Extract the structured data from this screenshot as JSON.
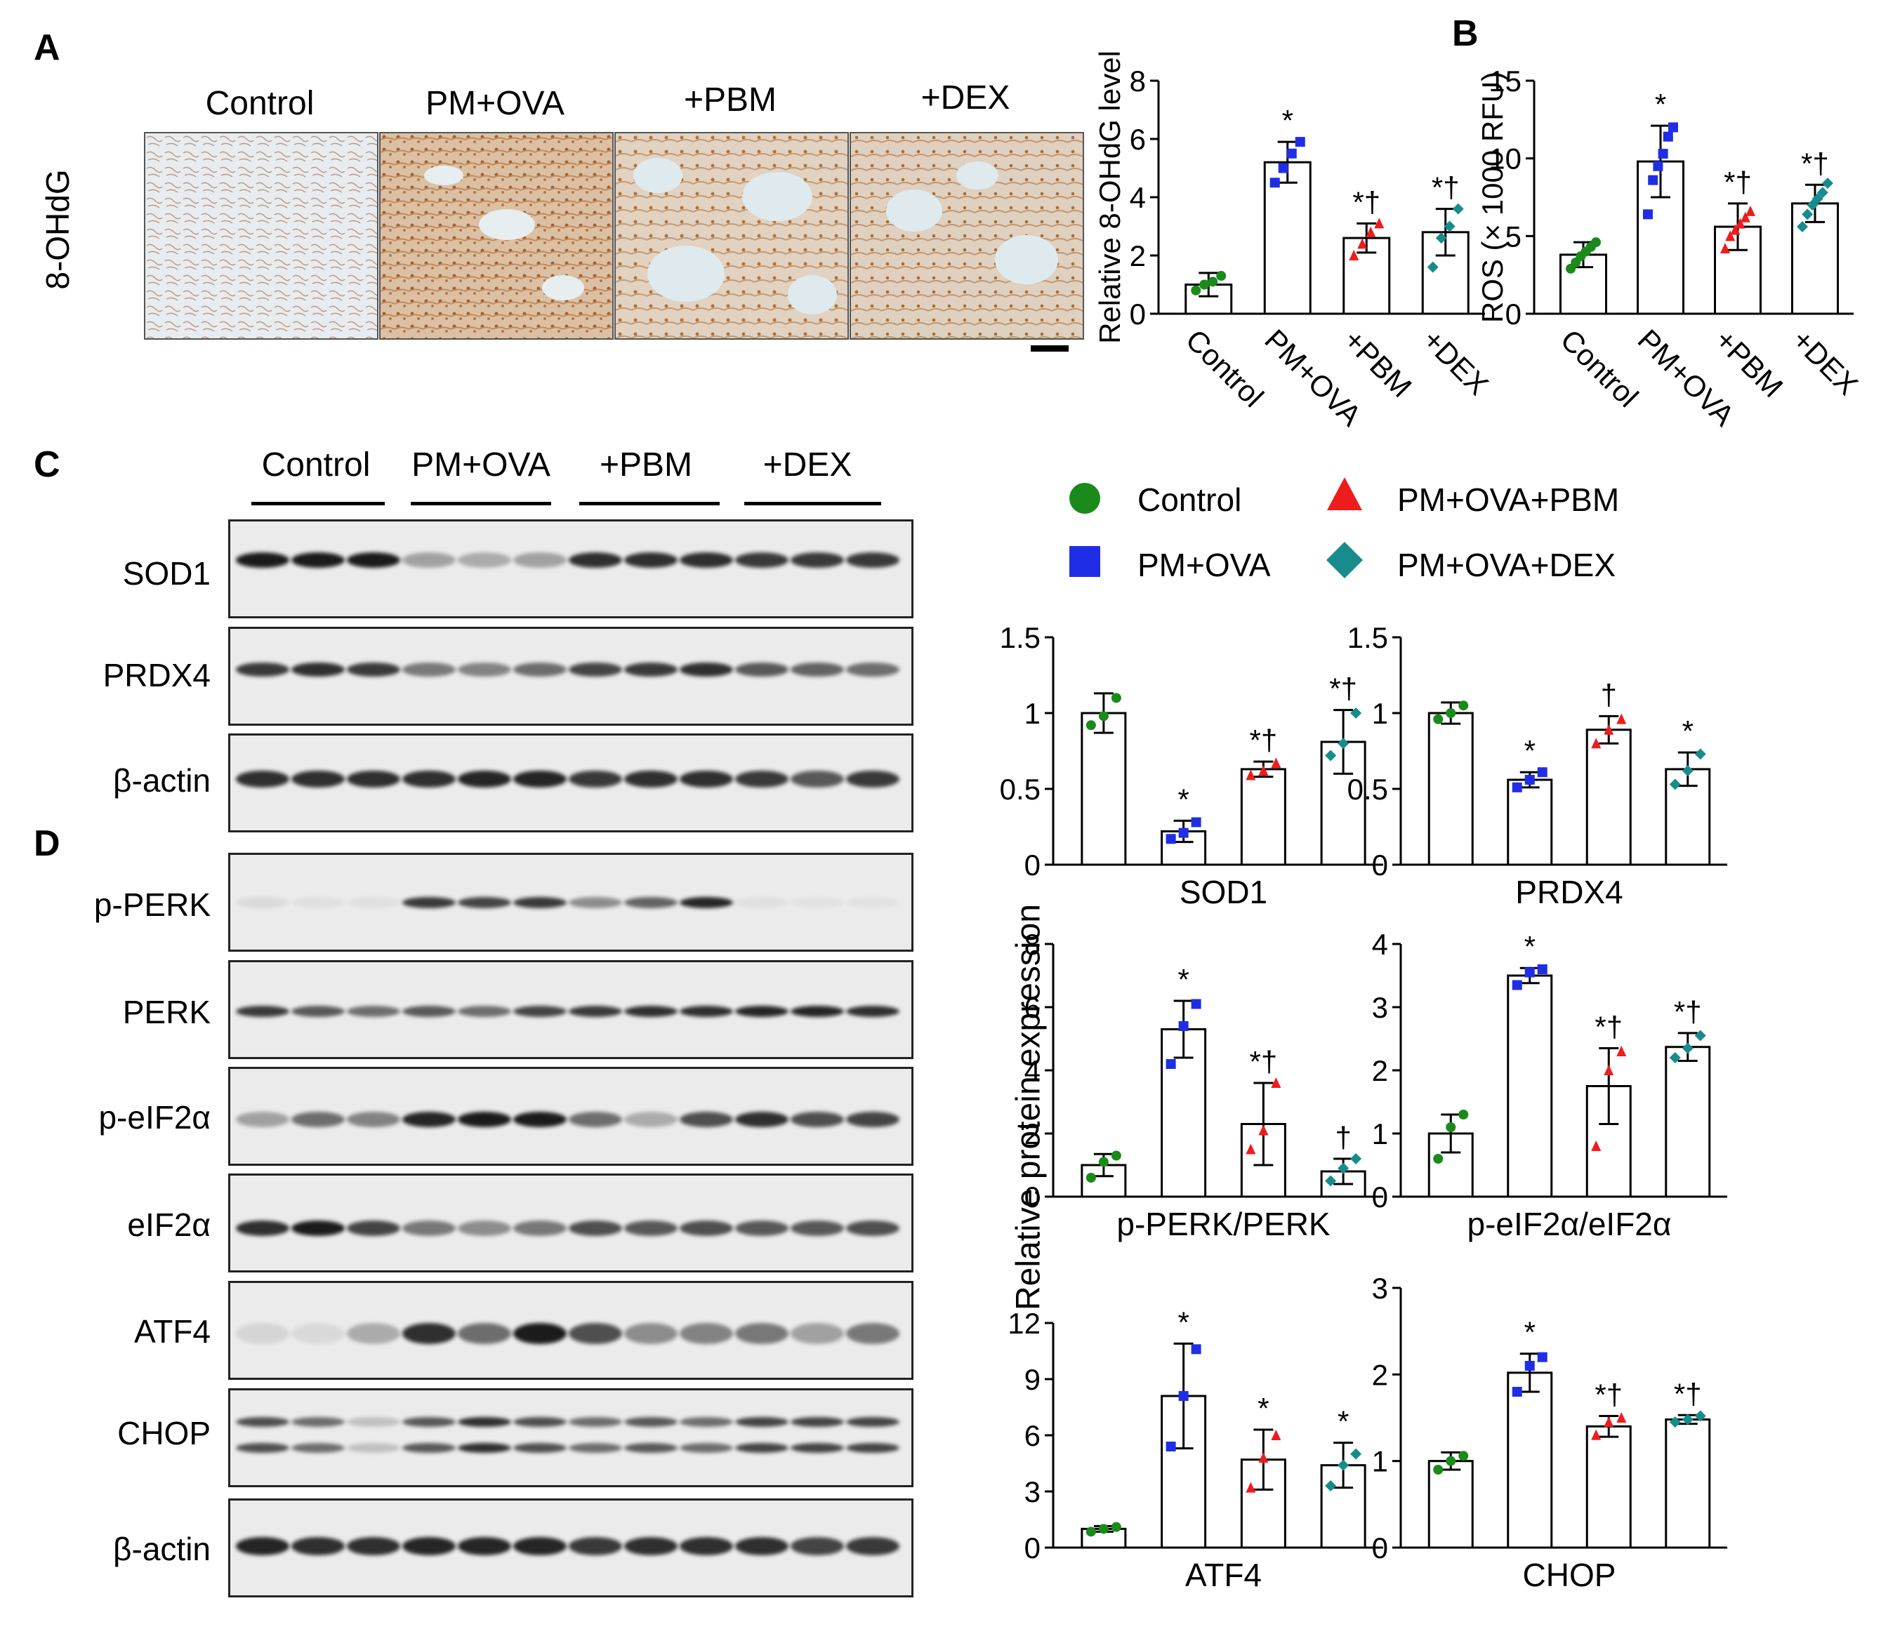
{
  "panels": {
    "a": "A",
    "b": "B",
    "c": "C",
    "d": "D"
  },
  "groups": [
    "Control",
    "PM+OVA",
    "+PBM",
    "+DEX"
  ],
  "ihc": {
    "row_label": "8-OHdG"
  },
  "blots_c": [
    "SOD1",
    "PRDX4",
    "β-actin"
  ],
  "blots_d": [
    "p-PERK",
    "PERK",
    "p-eIF2α",
    "eIF2α",
    "ATF4",
    "CHOP",
    "β-actin"
  ],
  "legend": {
    "items": [
      {
        "label": "Control",
        "color": "#1a8a1a",
        "shape": "circle"
      },
      {
        "label": "PM+OVA+PBM",
        "color": "#ee1c1c",
        "shape": "triangle"
      },
      {
        "label": "PM+OVA",
        "color": "#1f2ee6",
        "shape": "square"
      },
      {
        "label": "PM+OVA+DEX",
        "color": "#188c8c",
        "shape": "diamond"
      }
    ]
  },
  "shared_ylabel": "Relative protein expression",
  "chart_data": [
    {
      "id": "8ohdg",
      "type": "bar",
      "categories": [
        "Control",
        "PM+OVA",
        "+PBM",
        "+DEX"
      ],
      "ylabel": "Relative 8-OHdG level",
      "xlabel": "",
      "ylim": [
        0,
        8
      ],
      "ticks": [
        0,
        2,
        4,
        6,
        8
      ],
      "values": [
        1.0,
        5.2,
        2.6,
        2.8
      ],
      "errors": [
        0.4,
        0.7,
        0.5,
        0.8
      ],
      "points": [
        [
          0.8,
          1.0,
          1.1,
          1.3
        ],
        [
          4.5,
          5.0,
          5.5,
          5.9
        ],
        [
          2.0,
          2.4,
          2.8,
          3.1
        ],
        [
          1.6,
          2.6,
          3.0,
          3.6
        ]
      ],
      "annotations": [
        "",
        "*",
        "*†",
        "*†"
      ],
      "x_tick_rotated": true
    },
    {
      "id": "ros",
      "type": "bar",
      "categories": [
        "Control",
        "PM+OVA",
        "+PBM",
        "+DEX"
      ],
      "ylabel": "ROS (× 1000 RFU)",
      "xlabel": "",
      "ylim": [
        0,
        15
      ],
      "ticks": [
        0,
        5,
        10,
        15
      ],
      "values": [
        3.8,
        9.8,
        5.6,
        7.1
      ],
      "errors": [
        0.8,
        2.3,
        1.5,
        1.2
      ],
      "points": [
        [
          2.9,
          3.3,
          3.7,
          4.0,
          4.3,
          4.6
        ],
        [
          6.4,
          8.6,
          9.5,
          10.3,
          11.4,
          12.0
        ],
        [
          4.2,
          5.0,
          5.4,
          5.8,
          6.2,
          6.6
        ],
        [
          5.6,
          6.4,
          7.0,
          7.4,
          7.8,
          8.4
        ]
      ],
      "annotations": [
        "",
        "*",
        "*†",
        "*†"
      ],
      "x_tick_rotated": true
    },
    {
      "id": "sod1",
      "type": "bar",
      "categories": [
        "Control",
        "PM+OVA",
        "+PBM",
        "+DEX"
      ],
      "title": "SOD1",
      "ylim": [
        0,
        1.5
      ],
      "ticks": [
        0,
        0.5,
        1,
        1.5
      ],
      "values": [
        1.0,
        0.22,
        0.63,
        0.81
      ],
      "errors": [
        0.13,
        0.07,
        0.05,
        0.21
      ],
      "points": [
        [
          0.92,
          0.98,
          1.1
        ],
        [
          0.17,
          0.21,
          0.28
        ],
        [
          0.59,
          0.62,
          0.67
        ],
        [
          0.72,
          0.8,
          1.0
        ]
      ],
      "annotations": [
        "",
        "*",
        "*†",
        "*†"
      ]
    },
    {
      "id": "prdx4",
      "type": "bar",
      "categories": [
        "Control",
        "PM+OVA",
        "+PBM",
        "+DEX"
      ],
      "title": "PRDX4",
      "ylim": [
        0,
        1.5
      ],
      "ticks": [
        0,
        0.5,
        1,
        1.5
      ],
      "values": [
        1.0,
        0.56,
        0.89,
        0.63
      ],
      "errors": [
        0.07,
        0.05,
        0.09,
        0.11
      ],
      "points": [
        [
          0.96,
          1.0,
          1.05
        ],
        [
          0.51,
          0.56,
          0.61
        ],
        [
          0.8,
          0.89,
          0.96
        ],
        [
          0.53,
          0.62,
          0.73
        ]
      ],
      "annotations": [
        "",
        "*",
        "†",
        "*"
      ]
    },
    {
      "id": "pperk",
      "type": "bar",
      "categories": [
        "Control",
        "PM+OVA",
        "+PBM",
        "+DEX"
      ],
      "title": "p-PERK/PERK",
      "ylim": [
        0,
        8
      ],
      "ticks": [
        0,
        2,
        4,
        6,
        8
      ],
      "values": [
        1.0,
        5.3,
        2.3,
        0.8
      ],
      "errors": [
        0.35,
        0.9,
        1.3,
        0.4
      ],
      "points": [
        [
          0.6,
          1.1,
          1.3
        ],
        [
          4.2,
          5.4,
          6.1
        ],
        [
          1.5,
          2.1,
          3.6
        ],
        [
          0.5,
          0.9,
          1.2
        ]
      ],
      "annotations": [
        "",
        "*",
        "*†",
        "†"
      ]
    },
    {
      "id": "peif2a",
      "type": "bar",
      "categories": [
        "Control",
        "PM+OVA",
        "+PBM",
        "+DEX"
      ],
      "title": "p-eIF2α/eIF2α",
      "ylim": [
        0,
        4
      ],
      "ticks": [
        0,
        1,
        2,
        3,
        4
      ],
      "values": [
        1.0,
        3.5,
        1.75,
        2.37
      ],
      "errors": [
        0.3,
        0.12,
        0.6,
        0.22
      ],
      "points": [
        [
          0.6,
          1.1,
          1.3
        ],
        [
          3.35,
          3.55,
          3.6
        ],
        [
          0.8,
          2.0,
          2.3
        ],
        [
          2.2,
          2.35,
          2.55
        ]
      ],
      "annotations": [
        "",
        "*",
        "*†",
        "*†"
      ]
    },
    {
      "id": "atf4",
      "type": "bar",
      "categories": [
        "Control",
        "PM+OVA",
        "+PBM",
        "+DEX"
      ],
      "title": "ATF4",
      "ylim": [
        0,
        12
      ],
      "ticks": [
        0,
        3,
        6,
        9,
        12
      ],
      "values": [
        1.0,
        8.1,
        4.7,
        4.4
      ],
      "errors": [
        0.15,
        2.8,
        1.6,
        1.2
      ],
      "points": [
        [
          0.85,
          1.0,
          1.1
        ],
        [
          5.4,
          8.1,
          10.6
        ],
        [
          3.2,
          4.8,
          6.0
        ],
        [
          3.3,
          4.4,
          5.0
        ]
      ],
      "annotations": [
        "",
        "*",
        "*",
        "*"
      ]
    },
    {
      "id": "chop",
      "type": "bar",
      "categories": [
        "Control",
        "PM+OVA",
        "+PBM",
        "+DEX"
      ],
      "title": "CHOP",
      "ylim": [
        0,
        3
      ],
      "ticks": [
        0,
        1,
        2,
        3
      ],
      "values": [
        1.0,
        2.02,
        1.4,
        1.48
      ],
      "errors": [
        0.1,
        0.22,
        0.12,
        0.05
      ],
      "points": [
        [
          0.9,
          1.0,
          1.06
        ],
        [
          1.8,
          2.1,
          2.2
        ],
        [
          1.3,
          1.45,
          1.5
        ],
        [
          1.45,
          1.48,
          1.52
        ]
      ],
      "annotations": [
        "",
        "*",
        "*†",
        "*†"
      ]
    }
  ]
}
